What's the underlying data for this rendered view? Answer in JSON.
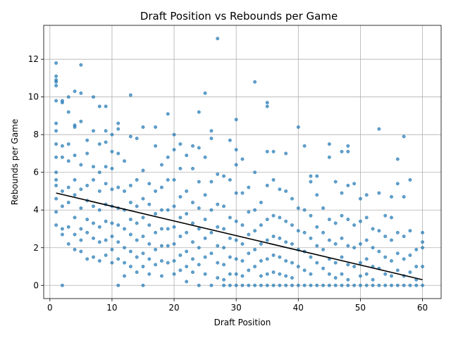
{
  "chart_data": {
    "type": "scatter",
    "title": "Draft Position vs Rebounds per Game",
    "xlabel": "Draft Position",
    "ylabel": "Rebounds per Game",
    "xlim": [
      -1,
      63
    ],
    "ylim": [
      -0.7,
      13.8
    ],
    "xticks": [
      0,
      10,
      20,
      30,
      40,
      50,
      60
    ],
    "yticks": [
      0,
      2,
      4,
      6,
      8,
      10,
      12
    ],
    "grid": true,
    "point_color": "#1f77b4",
    "trend_color": "#000000",
    "trend_line": {
      "x": [
        1,
        60
      ],
      "y": [
        4.9,
        0.3
      ]
    },
    "points": [
      [
        1,
        11.8
      ],
      [
        1,
        11.1
      ],
      [
        1,
        10.9
      ],
      [
        1,
        10.8
      ],
      [
        1,
        10.6
      ],
      [
        1,
        9.8
      ],
      [
        1,
        8.6
      ],
      [
        1,
        8.2
      ],
      [
        1,
        7.5
      ],
      [
        1,
        6.8
      ],
      [
        1,
        6.0
      ],
      [
        1,
        5.6
      ],
      [
        1,
        5.3
      ],
      [
        1,
        4.6
      ],
      [
        1,
        3.9
      ],
      [
        1,
        3.2
      ],
      [
        2,
        9.8
      ],
      [
        2,
        9.7
      ],
      [
        2,
        7.4
      ],
      [
        2,
        6.8
      ],
      [
        2,
        5.0
      ],
      [
        2,
        4.2
      ],
      [
        2,
        3.0
      ],
      [
        2,
        2.7
      ],
      [
        2,
        0.0
      ],
      [
        3,
        10.0
      ],
      [
        3,
        9.2
      ],
      [
        3,
        7.5
      ],
      [
        3,
        6.6
      ],
      [
        3,
        5.2
      ],
      [
        3,
        4.4
      ],
      [
        3,
        3.1
      ],
      [
        3,
        2.2
      ],
      [
        4,
        10.3
      ],
      [
        4,
        8.5
      ],
      [
        4,
        8.4
      ],
      [
        4,
        6.9
      ],
      [
        4,
        5.6
      ],
      [
        4,
        4.8
      ],
      [
        4,
        3.6
      ],
      [
        4,
        2.7
      ],
      [
        4,
        1.9
      ],
      [
        5,
        11.7
      ],
      [
        5,
        10.2
      ],
      [
        5,
        8.7
      ],
      [
        5,
        6.4
      ],
      [
        5,
        5.1
      ],
      [
        5,
        4.1
      ],
      [
        5,
        3.0
      ],
      [
        5,
        2.4
      ],
      [
        5,
        1.8
      ],
      [
        6,
        7.7
      ],
      [
        6,
        7.0
      ],
      [
        6,
        5.3
      ],
      [
        6,
        4.5
      ],
      [
        6,
        3.5
      ],
      [
        6,
        2.8
      ],
      [
        6,
        1.4
      ],
      [
        7,
        10.0
      ],
      [
        7,
        8.2
      ],
      [
        7,
        6.3
      ],
      [
        7,
        5.6
      ],
      [
        7,
        4.2
      ],
      [
        7,
        3.3
      ],
      [
        7,
        2.5
      ],
      [
        7,
        1.5
      ],
      [
        8,
        9.5
      ],
      [
        8,
        7.5
      ],
      [
        8,
        6.0
      ],
      [
        8,
        5.0
      ],
      [
        8,
        4.0
      ],
      [
        8,
        3.1
      ],
      [
        8,
        2.3
      ],
      [
        8,
        1.3
      ],
      [
        9,
        9.5
      ],
      [
        9,
        8.2
      ],
      [
        9,
        7.6
      ],
      [
        9,
        6.3
      ],
      [
        9,
        5.4
      ],
      [
        9,
        4.3
      ],
      [
        9,
        3.4
      ],
      [
        9,
        2.4
      ],
      [
        9,
        1.6
      ],
      [
        10,
        8.0
      ],
      [
        10,
        7.1
      ],
      [
        10,
        6.2
      ],
      [
        10,
        5.1
      ],
      [
        10,
        4.2
      ],
      [
        10,
        3.3
      ],
      [
        10,
        2.6
      ],
      [
        10,
        1.9
      ],
      [
        10,
        1.2
      ],
      [
        11,
        8.6
      ],
      [
        11,
        8.3
      ],
      [
        11,
        7.0
      ],
      [
        11,
        5.2
      ],
      [
        11,
        4.1
      ],
      [
        11,
        3.2
      ],
      [
        11,
        2.3
      ],
      [
        11,
        1.4
      ],
      [
        11,
        0.0
      ],
      [
        12,
        6.6
      ],
      [
        12,
        5.0
      ],
      [
        12,
        4.0
      ],
      [
        12,
        3.0
      ],
      [
        12,
        2.0
      ],
      [
        12,
        1.2
      ],
      [
        12,
        0.5
      ],
      [
        13,
        10.1
      ],
      [
        13,
        7.9
      ],
      [
        13,
        5.3
      ],
      [
        13,
        4.4
      ],
      [
        13,
        3.5
      ],
      [
        13,
        2.7
      ],
      [
        13,
        1.8
      ],
      [
        13,
        1.0
      ],
      [
        14,
        7.8
      ],
      [
        14,
        5.6
      ],
      [
        14,
        4.2
      ],
      [
        14,
        3.3
      ],
      [
        14,
        2.4
      ],
      [
        14,
        1.5
      ],
      [
        14,
        0.7
      ],
      [
        15,
        8.4
      ],
      [
        15,
        6.1
      ],
      [
        15,
        4.6
      ],
      [
        15,
        3.6
      ],
      [
        15,
        2.6
      ],
      [
        15,
        1.7
      ],
      [
        15,
        1.0
      ],
      [
        15,
        0.0
      ],
      [
        16,
        5.4
      ],
      [
        16,
        4.3
      ],
      [
        16,
        3.2
      ],
      [
        16,
        2.2
      ],
      [
        16,
        1.4
      ],
      [
        16,
        0.6
      ],
      [
        17,
        8.4
      ],
      [
        17,
        7.4
      ],
      [
        17,
        5.0
      ],
      [
        17,
        3.8
      ],
      [
        17,
        2.8
      ],
      [
        17,
        1.9
      ],
      [
        17,
        1.1
      ],
      [
        18,
        6.4
      ],
      [
        18,
        5.2
      ],
      [
        18,
        4.0
      ],
      [
        18,
        3.0
      ],
      [
        18,
        2.1
      ],
      [
        18,
        1.3
      ],
      [
        18,
        0.5
      ],
      [
        19,
        9.1
      ],
      [
        19,
        6.8
      ],
      [
        19,
        5.6
      ],
      [
        19,
        4.0
      ],
      [
        19,
        3.0
      ],
      [
        19,
        2.1
      ],
      [
        19,
        1.2
      ],
      [
        20,
        8.0
      ],
      [
        20,
        7.2
      ],
      [
        20,
        5.6
      ],
      [
        20,
        4.2
      ],
      [
        20,
        3.1
      ],
      [
        20,
        2.2
      ],
      [
        20,
        1.3
      ],
      [
        20,
        0.6
      ],
      [
        21,
        7.5
      ],
      [
        21,
        6.2
      ],
      [
        21,
        4.7
      ],
      [
        21,
        3.6
      ],
      [
        21,
        2.6
      ],
      [
        21,
        1.6
      ],
      [
        21,
        0.8
      ],
      [
        22,
        6.9
      ],
      [
        22,
        5.0
      ],
      [
        22,
        3.8
      ],
      [
        22,
        2.8
      ],
      [
        22,
        1.8
      ],
      [
        22,
        1.0
      ],
      [
        22,
        0.2
      ],
      [
        23,
        7.4
      ],
      [
        23,
        6.2
      ],
      [
        23,
        4.4
      ],
      [
        23,
        3.3
      ],
      [
        23,
        2.3
      ],
      [
        23,
        1.4
      ],
      [
        23,
        0.7
      ],
      [
        24,
        9.2
      ],
      [
        24,
        7.3
      ],
      [
        24,
        5.5
      ],
      [
        24,
        4.1
      ],
      [
        24,
        3.0
      ],
      [
        24,
        2.0
      ],
      [
        24,
        1.1
      ],
      [
        24,
        0.0
      ],
      [
        25,
        10.2
      ],
      [
        25,
        6.8
      ],
      [
        25,
        4.8
      ],
      [
        25,
        3.5
      ],
      [
        25,
        2.5
      ],
      [
        25,
        1.5
      ],
      [
        25,
        0.6
      ],
      [
        26,
        8.2
      ],
      [
        26,
        7.8
      ],
      [
        26,
        5.5
      ],
      [
        26,
        4.0
      ],
      [
        26,
        2.8
      ],
      [
        26,
        1.7
      ],
      [
        26,
        0.0
      ],
      [
        27,
        13.1
      ],
      [
        27,
        5.9
      ],
      [
        27,
        4.3
      ],
      [
        27,
        3.1
      ],
      [
        27,
        2.1
      ],
      [
        27,
        1.2
      ],
      [
        27,
        0.4
      ],
      [
        28,
        5.8
      ],
      [
        28,
        4.2
      ],
      [
        28,
        3.0
      ],
      [
        28,
        2.0
      ],
      [
        28,
        1.1
      ],
      [
        28,
        0.3
      ],
      [
        28,
        0.0
      ],
      [
        29,
        7.7
      ],
      [
        29,
        5.6
      ],
      [
        29,
        3.6
      ],
      [
        29,
        2.5
      ],
      [
        29,
        1.5
      ],
      [
        29,
        0.6
      ],
      [
        29,
        0.0
      ],
      [
        30,
        8.8
      ],
      [
        30,
        7.2
      ],
      [
        30,
        6.4
      ],
      [
        30,
        4.9
      ],
      [
        30,
        3.4
      ],
      [
        30,
        2.4
      ],
      [
        30,
        1.4
      ],
      [
        30,
        0.6
      ],
      [
        30,
        0.0
      ],
      [
        31,
        6.7
      ],
      [
        31,
        4.9
      ],
      [
        31,
        3.2
      ],
      [
        31,
        2.2
      ],
      [
        31,
        1.3
      ],
      [
        31,
        0.5
      ],
      [
        31,
        0.0
      ],
      [
        32,
        5.2
      ],
      [
        32,
        3.9
      ],
      [
        32,
        2.7
      ],
      [
        32,
        1.7
      ],
      [
        32,
        0.8
      ],
      [
        32,
        0.0
      ],
      [
        33,
        10.8
      ],
      [
        33,
        6.0
      ],
      [
        33,
        4.0
      ],
      [
        33,
        2.9
      ],
      [
        33,
        1.9
      ],
      [
        33,
        1.0
      ],
      [
        33,
        0.0
      ],
      [
        34,
        4.4
      ],
      [
        34,
        3.2
      ],
      [
        34,
        2.2
      ],
      [
        34,
        1.3
      ],
      [
        34,
        0.5
      ],
      [
        34,
        0.0
      ],
      [
        35,
        9.7
      ],
      [
        35,
        9.5
      ],
      [
        35,
        7.1
      ],
      [
        35,
        5.3
      ],
      [
        35,
        3.5
      ],
      [
        35,
        2.4
      ],
      [
        35,
        1.4
      ],
      [
        35,
        0.6
      ],
      [
        35,
        0.0
      ],
      [
        36,
        7.1
      ],
      [
        36,
        5.6
      ],
      [
        36,
        3.7
      ],
      [
        36,
        2.6
      ],
      [
        36,
        1.6
      ],
      [
        36,
        0.7
      ],
      [
        36,
        0.0
      ],
      [
        37,
        5.1
      ],
      [
        37,
        3.6
      ],
      [
        37,
        2.5
      ],
      [
        37,
        1.5
      ],
      [
        37,
        0.6
      ],
      [
        37,
        0.0
      ],
      [
        38,
        7.0
      ],
      [
        38,
        5.0
      ],
      [
        38,
        3.4
      ],
      [
        38,
        2.3
      ],
      [
        38,
        1.3
      ],
      [
        38,
        0.5
      ],
      [
        38,
        0.0
      ],
      [
        39,
        4.6
      ],
      [
        39,
        3.2
      ],
      [
        39,
        2.2
      ],
      [
        39,
        1.2
      ],
      [
        39,
        0.4
      ],
      [
        39,
        0.0
      ],
      [
        40,
        8.4
      ],
      [
        40,
        4.1
      ],
      [
        40,
        2.9
      ],
      [
        40,
        1.9
      ],
      [
        40,
        1.0
      ],
      [
        40,
        0.0
      ],
      [
        41,
        7.4
      ],
      [
        41,
        4.0
      ],
      [
        41,
        2.8
      ],
      [
        41,
        1.8
      ],
      [
        41,
        0.8
      ],
      [
        41,
        0.0
      ],
      [
        42,
        5.8
      ],
      [
        42,
        5.5
      ],
      [
        42,
        3.7
      ],
      [
        42,
        2.5
      ],
      [
        42,
        1.5
      ],
      [
        42,
        0.6
      ],
      [
        42,
        0.0
      ],
      [
        43,
        5.8
      ],
      [
        43,
        4.8
      ],
      [
        43,
        3.1
      ],
      [
        43,
        2.1
      ],
      [
        43,
        1.2
      ],
      [
        43,
        0.0
      ],
      [
        44,
        4.1
      ],
      [
        44,
        2.8
      ],
      [
        44,
        1.9
      ],
      [
        44,
        0.9
      ],
      [
        44,
        0.0
      ],
      [
        45,
        7.5
      ],
      [
        45,
        6.8
      ],
      [
        45,
        3.5
      ],
      [
        45,
        2.4
      ],
      [
        45,
        1.4
      ],
      [
        45,
        0.6
      ],
      [
        45,
        0.0
      ],
      [
        46,
        5.5
      ],
      [
        46,
        3.3
      ],
      [
        46,
        2.2
      ],
      [
        46,
        1.2
      ],
      [
        46,
        0.4
      ],
      [
        46,
        0.0
      ],
      [
        47,
        7.1
      ],
      [
        47,
        4.9
      ],
      [
        47,
        3.7
      ],
      [
        47,
        2.5
      ],
      [
        47,
        1.5
      ],
      [
        47,
        0.6
      ],
      [
        47,
        0.0
      ],
      [
        48,
        7.4
      ],
      [
        48,
        7.1
      ],
      [
        48,
        5.3
      ],
      [
        48,
        3.5
      ],
      [
        48,
        2.1
      ],
      [
        48,
        1.1
      ],
      [
        48,
        0.3
      ],
      [
        48,
        0.0
      ],
      [
        49,
        5.4
      ],
      [
        49,
        3.2
      ],
      [
        49,
        2.0
      ],
      [
        49,
        1.0
      ],
      [
        49,
        0.0
      ],
      [
        50,
        4.6
      ],
      [
        50,
        3.4
      ],
      [
        50,
        2.2
      ],
      [
        50,
        1.2
      ],
      [
        50,
        0.5
      ],
      [
        50,
        0.0
      ],
      [
        51,
        4.8
      ],
      [
        51,
        3.6
      ],
      [
        51,
        2.4
      ],
      [
        51,
        1.4
      ],
      [
        51,
        0.6
      ],
      [
        51,
        0.0
      ],
      [
        52,
        3.0
      ],
      [
        52,
        2.0
      ],
      [
        52,
        1.0
      ],
      [
        52,
        0.3
      ],
      [
        52,
        0.0
      ],
      [
        53,
        8.3
      ],
      [
        53,
        4.9
      ],
      [
        53,
        2.9
      ],
      [
        53,
        1.8
      ],
      [
        53,
        0.9
      ],
      [
        53,
        0.0
      ],
      [
        54,
        3.7
      ],
      [
        54,
        2.6
      ],
      [
        54,
        1.5
      ],
      [
        54,
        0.6
      ],
      [
        54,
        0.0
      ],
      [
        55,
        4.7
      ],
      [
        55,
        3.6
      ],
      [
        55,
        2.4
      ],
      [
        55,
        1.3
      ],
      [
        55,
        0.5
      ],
      [
        55,
        0.0
      ],
      [
        56,
        6.7
      ],
      [
        56,
        5.4
      ],
      [
        56,
        2.8
      ],
      [
        56,
        1.7
      ],
      [
        56,
        0.8
      ],
      [
        56,
        0.0
      ],
      [
        57,
        7.9
      ],
      [
        57,
        4.7
      ],
      [
        57,
        2.6
      ],
      [
        57,
        1.4
      ],
      [
        57,
        0.5
      ],
      [
        57,
        0.0
      ],
      [
        58,
        5.6
      ],
      [
        58,
        2.9
      ],
      [
        58,
        1.6
      ],
      [
        58,
        0.7
      ],
      [
        58,
        0.0
      ],
      [
        59,
        1.9
      ],
      [
        59,
        1.0
      ],
      [
        59,
        0.3
      ],
      [
        59,
        0.0
      ],
      [
        60,
        2.8
      ],
      [
        60,
        2.3
      ],
      [
        60,
        2.0
      ],
      [
        60,
        1.0
      ],
      [
        60,
        0.0
      ]
    ]
  }
}
